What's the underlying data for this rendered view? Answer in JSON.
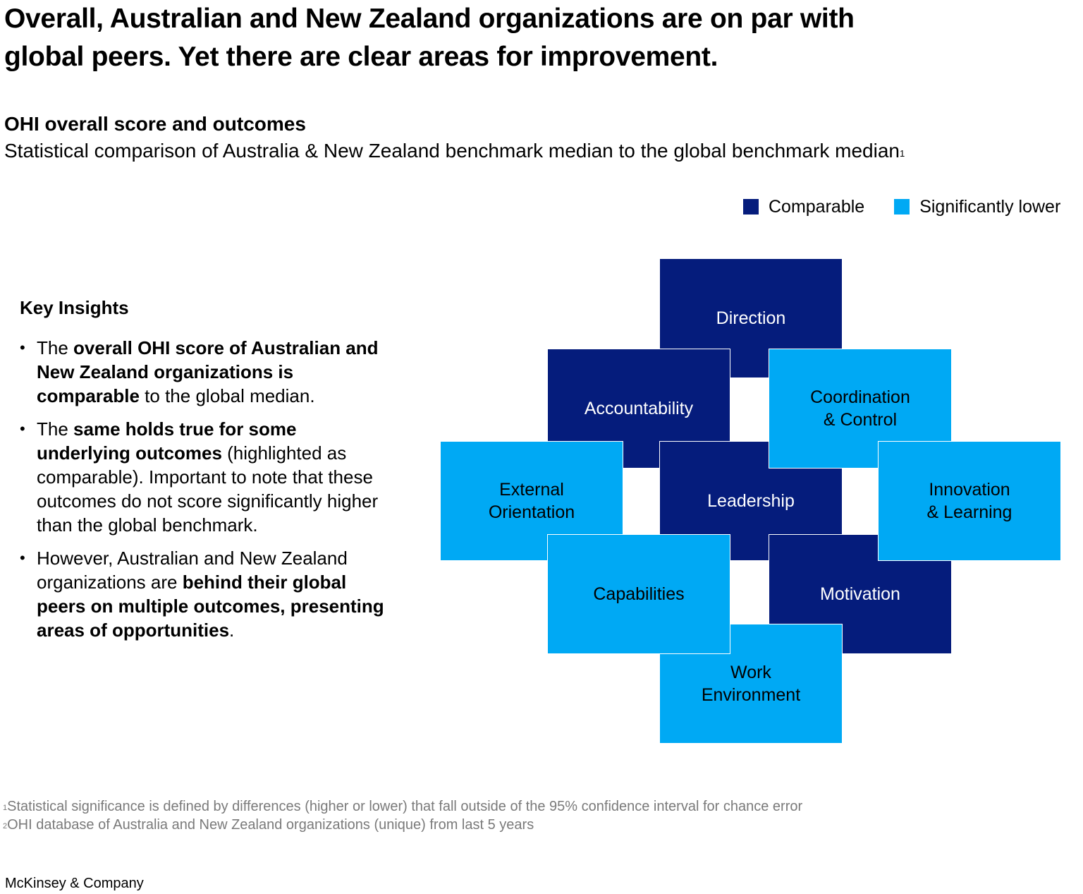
{
  "headline": {
    "line1": "Overall, Australian and New Zealand organizations are on par with",
    "line2": "global peers. Yet there are clear areas for improvement."
  },
  "subtitle": "OHI overall score and outcomes",
  "subdesc": {
    "text": "Statistical comparison of Australia & New Zealand benchmark median to the global benchmark median",
    "footnote_mark": "1"
  },
  "legend": {
    "comparable": {
      "label": "Comparable",
      "color": "#051c7c"
    },
    "lower": {
      "label": "Significantly lower",
      "color": "#00a9f4"
    }
  },
  "insights": {
    "title": "Key Insights",
    "bullets": [
      [
        {
          "t": "The ",
          "b": false
        },
        {
          "t": "overall OHI score of Australian and New Zealand organizations is comparable",
          "b": true
        },
        {
          "t": " to the global median.",
          "b": false
        }
      ],
      [
        {
          "t": "The ",
          "b": false
        },
        {
          "t": "same holds true for some underlying outcomes",
          "b": true
        },
        {
          "t": " (highlighted as comparable). Important to note that these outcomes do not score significantly higher than the global benchmark.",
          "b": false
        }
      ],
      [
        {
          "t": "However, Australian and New Zealand organizations are ",
          "b": false
        },
        {
          "t": "behind their global peers on multiple outcomes, presenting areas of opportunities",
          "b": true
        },
        {
          "t": ".",
          "b": false
        }
      ]
    ]
  },
  "outcomes": {
    "direction": {
      "label": "Direction",
      "status": "comparable"
    },
    "accountability": {
      "label": "Accountability",
      "status": "comparable"
    },
    "coordination": {
      "label": "Coordination\n& Control",
      "status": "significantly lower"
    },
    "external": {
      "label": "External\nOrientation",
      "status": "significantly lower"
    },
    "leadership": {
      "label": "Leadership",
      "status": "comparable"
    },
    "innovation": {
      "label": "Innovation\n& Learning",
      "status": "significantly lower"
    },
    "motivation": {
      "label": "Motivation",
      "status": "comparable"
    },
    "capabilities": {
      "label": "Capabilities",
      "status": "significantly lower"
    },
    "work": {
      "label": "Work\nEnvironment",
      "status": "significantly lower"
    }
  },
  "footnotes": [
    {
      "mark": "1",
      "text": "Statistical significance is defined by differences (higher or lower) that fall outside of the 95% confidence interval for chance error"
    },
    {
      "mark": "2",
      "text": "OHI database of Australia and New Zealand organizations (unique) from last 5 years"
    }
  ],
  "brand": "McKinsey & Company"
}
